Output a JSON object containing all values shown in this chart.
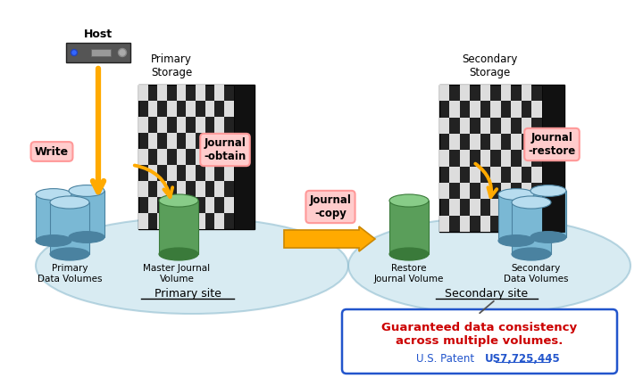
{
  "bg_color": "#ffffff",
  "primary_site_label": "Primary site",
  "secondary_site_label": "Secondary site",
  "primary_storage_label": "Primary\nStorage",
  "secondary_storage_label": "Secondary\nStorage",
  "host_label": "Host",
  "primary_data_vol_label": "Primary\nData Volumes",
  "master_journal_label": "Master Journal\nVolume",
  "restore_journal_label": "Restore\nJournal Volume",
  "secondary_data_vol_label": "Secondary\nData Volumes",
  "write_label": "Write",
  "journal_obtain_label": "Journal\n-obtain",
  "journal_copy_label": "Journal\n-copy",
  "journal_restore_label": "Journal\n-restore",
  "patent_text": "U.S. Patent",
  "patent_number": "US7,725,445",
  "guarantee_text": "Guaranteed data consistency\nacross multiple volumes.",
  "ellipse_color": "#b8dce8",
  "arrow_color": "#ffaa00",
  "arrow_edge_color": "#cc8800",
  "pink_label_facecolor": "#ffcccc",
  "pink_label_edgecolor": "#ff9999",
  "blue_border_color": "#2255cc",
  "red_text_color": "#cc0000",
  "blue_text_color": "#2255cc",
  "cyl_blue_top": "#b8ddef",
  "cyl_blue_body": "#7ab8d4",
  "cyl_blue_dark": "#4a82a0",
  "cyl_green_top": "#88cc88",
  "cyl_green_body": "#5a9e5a",
  "cyl_green_dark": "#3a7a3a",
  "storage_dark": "#222222",
  "storage_panel": "#111111",
  "host_body": "#444444",
  "underline_color": "#000000"
}
